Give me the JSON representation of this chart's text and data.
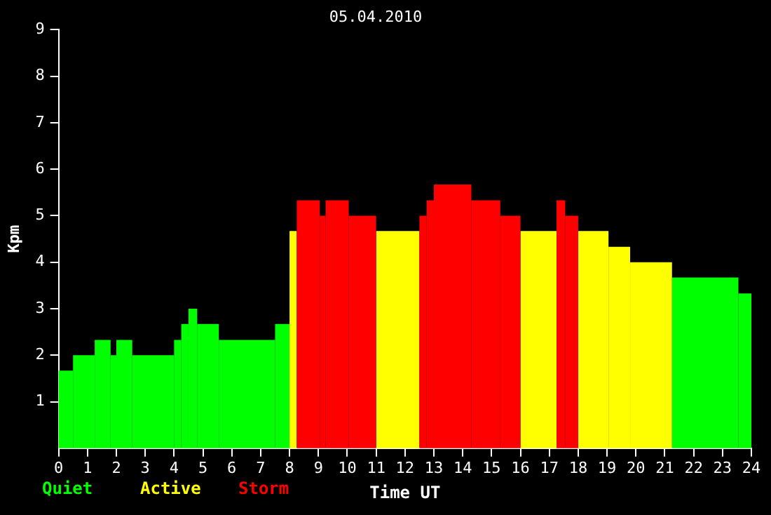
{
  "chart_data": {
    "type": "histogram",
    "title": "05.04.2010",
    "xlabel": "Time UT",
    "ylabel": "Kpm",
    "bins": [
      0,
      0.5,
      1.25,
      1.8,
      2,
      2.55,
      4,
      4.25,
      4.5,
      4.8,
      5.55,
      7.5,
      8,
      8.25,
      9.05,
      9.25,
      10.05,
      11,
      12.5,
      12.75,
      13,
      14.3,
      15.3,
      16,
      17.25,
      17.55,
      18,
      19.05,
      19.8,
      21.25,
      23.55,
      24
    ],
    "series": [
      {
        "name": "Quiet",
        "color": "#00ff00",
        "values": [
          1.67,
          2,
          2.33,
          2,
          2.33,
          2,
          2.33,
          2.67,
          3,
          2.67,
          2.33,
          2.67,
          null,
          null,
          null,
          null,
          null,
          null,
          null,
          null,
          null,
          null,
          null,
          null,
          null,
          null,
          null,
          null,
          null,
          3.67,
          3.33
        ]
      },
      {
        "name": "Active",
        "color": "#ffff00",
        "values": [
          null,
          null,
          null,
          null,
          null,
          null,
          null,
          null,
          null,
          null,
          null,
          null,
          4.67,
          null,
          null,
          null,
          null,
          4.67,
          null,
          null,
          null,
          null,
          null,
          4.67,
          null,
          null,
          4.67,
          4.33,
          4,
          null,
          null
        ]
      },
      {
        "name": "Storm",
        "color": "#ff0000",
        "values": [
          null,
          null,
          null,
          null,
          null,
          null,
          null,
          null,
          null,
          null,
          null,
          null,
          null,
          5.33,
          5,
          5.33,
          5,
          null,
          5,
          5.33,
          5.67,
          5.33,
          5,
          null,
          5.33,
          5,
          null,
          null,
          null,
          null,
          null
        ]
      }
    ],
    "xlim": [
      0,
      24
    ],
    "xticks": [
      0,
      1,
      2,
      3,
      4,
      5,
      6,
      7,
      8,
      9,
      10,
      11,
      12,
      13,
      14,
      15,
      16,
      17,
      18,
      19,
      20,
      21,
      22,
      23,
      24
    ],
    "ylim": [
      0,
      9
    ],
    "yticks": [
      1,
      2,
      3,
      4,
      5,
      6,
      7,
      8,
      9
    ],
    "grid": false,
    "legend": "bottom left"
  }
}
